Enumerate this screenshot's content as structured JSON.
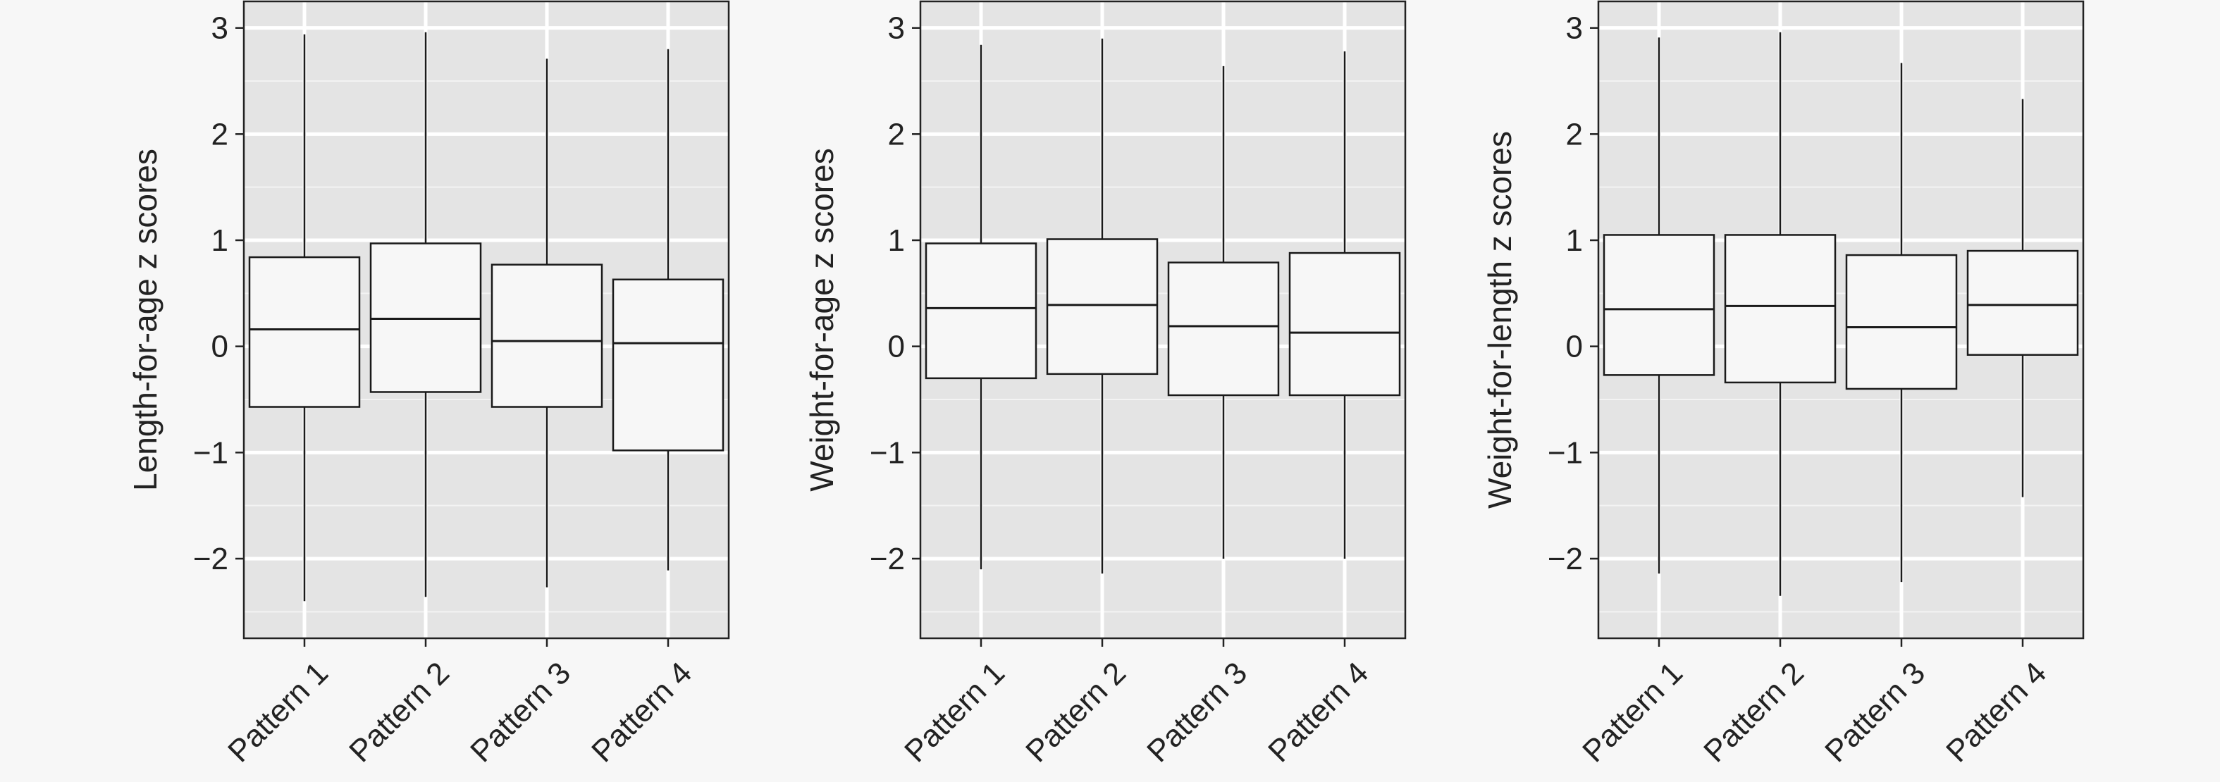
{
  "figure": {
    "background": "#f7f7f7",
    "panel_background": "#e4e4e4",
    "grid_color": "#ffffff",
    "box_fill": "#f7f7f7",
    "line_color": "#1a1a1a"
  },
  "chart_data": [
    {
      "type": "box",
      "ylabel": "Length-for-age z scores",
      "xlabel": "",
      "ylim": [
        -2.75,
        3.25
      ],
      "yticks": [
        -2,
        -1,
        0,
        1,
        2,
        3
      ],
      "ytick_labels": [
        "−2",
        "−1",
        "0",
        "1",
        "2",
        "3"
      ],
      "grid": true,
      "categories": [
        "Pattern 1",
        "Pattern 2",
        "Pattern 3",
        "Pattern 4"
      ],
      "boxes": [
        {
          "min": -2.4,
          "q1": -0.57,
          "median": 0.16,
          "q3": 0.84,
          "max": 2.94
        },
        {
          "min": -2.36,
          "q1": -0.43,
          "median": 0.26,
          "q3": 0.97,
          "max": 2.96
        },
        {
          "min": -2.27,
          "q1": -0.57,
          "median": 0.05,
          "q3": 0.77,
          "max": 2.71
        },
        {
          "min": -2.11,
          "q1": -0.98,
          "median": 0.03,
          "q3": 0.63,
          "max": 2.8
        }
      ]
    },
    {
      "type": "box",
      "ylabel": "Weight-for-age z scores",
      "xlabel": "",
      "ylim": [
        -2.75,
        3.25
      ],
      "yticks": [
        -2,
        -1,
        0,
        1,
        2,
        3
      ],
      "ytick_labels": [
        "−2",
        "−1",
        "0",
        "1",
        "2",
        "3"
      ],
      "grid": true,
      "categories": [
        "Pattern 1",
        "Pattern 2",
        "Pattern 3",
        "Pattern 4"
      ],
      "boxes": [
        {
          "min": -2.1,
          "q1": -0.3,
          "median": 0.36,
          "q3": 0.97,
          "max": 2.84
        },
        {
          "min": -2.14,
          "q1": -0.26,
          "median": 0.39,
          "q3": 1.01,
          "max": 2.9
        },
        {
          "min": -2.0,
          "q1": -0.46,
          "median": 0.19,
          "q3": 0.79,
          "max": 2.64
        },
        {
          "min": -2.0,
          "q1": -0.46,
          "median": 0.13,
          "q3": 0.88,
          "max": 2.78
        }
      ]
    },
    {
      "type": "box",
      "ylabel": "Weight-for-length z scores",
      "xlabel": "",
      "ylim": [
        -2.75,
        3.25
      ],
      "yticks": [
        -2,
        -1,
        0,
        1,
        2,
        3
      ],
      "ytick_labels": [
        "−2",
        "−1",
        "0",
        "1",
        "2",
        "3"
      ],
      "grid": true,
      "categories": [
        "Pattern 1",
        "Pattern 2",
        "Pattern 3",
        "Pattern 4"
      ],
      "boxes": [
        {
          "min": -2.14,
          "q1": -0.27,
          "median": 0.35,
          "q3": 1.05,
          "max": 2.91
        },
        {
          "min": -2.35,
          "q1": -0.34,
          "median": 0.38,
          "q3": 1.05,
          "max": 2.96
        },
        {
          "min": -2.22,
          "q1": -0.4,
          "median": 0.18,
          "q3": 0.86,
          "max": 2.67
        },
        {
          "min": -1.42,
          "q1": -0.08,
          "median": 0.39,
          "q3": 0.9,
          "max": 2.33
        }
      ]
    }
  ]
}
